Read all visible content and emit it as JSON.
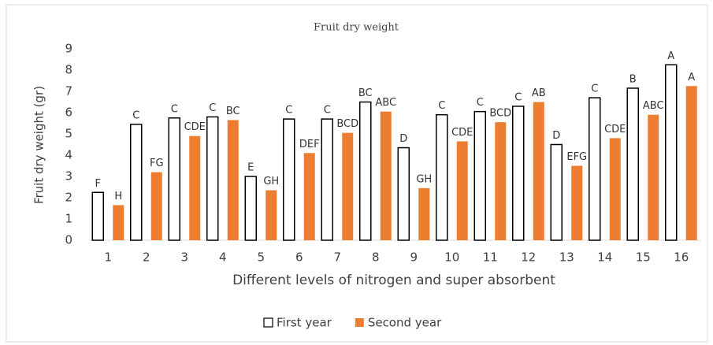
{
  "chart_data": {
    "type": "bar",
    "title": "Fruit dry weight",
    "xlabel": "Different levels of nitrogen and super absorbent",
    "ylabel": "Fruit dry weight (gr)",
    "categories": [
      "1",
      "2",
      "3",
      "4",
      "5",
      "6",
      "7",
      "8",
      "9",
      "10",
      "11",
      "12",
      "13",
      "14",
      "15",
      "16"
    ],
    "series": [
      {
        "name": "First year",
        "color": "#ffffff",
        "edgecolor": "#000000",
        "values": [
          2.25,
          5.45,
          5.75,
          5.8,
          3.0,
          5.7,
          5.7,
          6.5,
          4.35,
          5.9,
          6.05,
          6.3,
          4.5,
          6.7,
          7.15,
          8.25
        ],
        "labels": [
          "F",
          "C",
          "C",
          "C",
          "E",
          "C",
          "C",
          "BC",
          "D",
          "C",
          "C",
          "C",
          "D",
          "C",
          "B",
          "A"
        ]
      },
      {
        "name": "Second year",
        "color": "#ed7d31",
        "values": [
          1.65,
          3.2,
          4.9,
          5.65,
          2.35,
          4.1,
          5.05,
          6.05,
          2.45,
          4.65,
          5.55,
          6.5,
          3.5,
          4.8,
          5.9,
          7.25
        ],
        "labels": [
          "H",
          "FG",
          "CDE",
          "BC",
          "GH",
          "DEF",
          "BCD",
          "ABC",
          "GH",
          "CDE",
          "BCD",
          "AB",
          "EFG",
          "CDE",
          "ABC",
          "A"
        ]
      }
    ],
    "ylim": [
      0,
      9
    ],
    "yticks": [
      0,
      1,
      2,
      3,
      4,
      5,
      6,
      7,
      8,
      9
    ],
    "grid": false,
    "legend": "bottom"
  }
}
